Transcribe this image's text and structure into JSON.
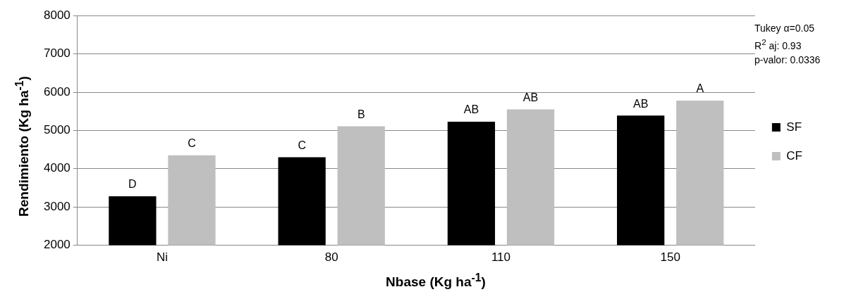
{
  "chart_data": {
    "type": "bar",
    "xlabel": "Nbase (Kg ha$^{-1}$)",
    "ylabel": "Rendimiento (Kg ha$^{-1}$)",
    "categories": [
      "Ni",
      "80",
      "110",
      "150"
    ],
    "series": [
      {
        "name": "SF",
        "color": "#000000",
        "values": [
          3280,
          4300,
          5230,
          5390
        ],
        "value_labels": [
          "D",
          "C",
          "AB",
          "AB"
        ]
      },
      {
        "name": "CF",
        "color": "#bfbfbf",
        "values": [
          4350,
          5110,
          5550,
          5780
        ],
        "value_labels": [
          "C",
          "B",
          "AB",
          "A"
        ]
      }
    ],
    "ylim": [
      2000,
      8000
    ],
    "yticks": [
      2000,
      3000,
      4000,
      5000,
      6000,
      7000,
      8000
    ],
    "grid": "y",
    "legend": "right",
    "annotations": [
      "Tukey α=0.05",
      "R$^{2}$ aj: 0.93",
      "p-valor: 0.0336"
    ]
  }
}
